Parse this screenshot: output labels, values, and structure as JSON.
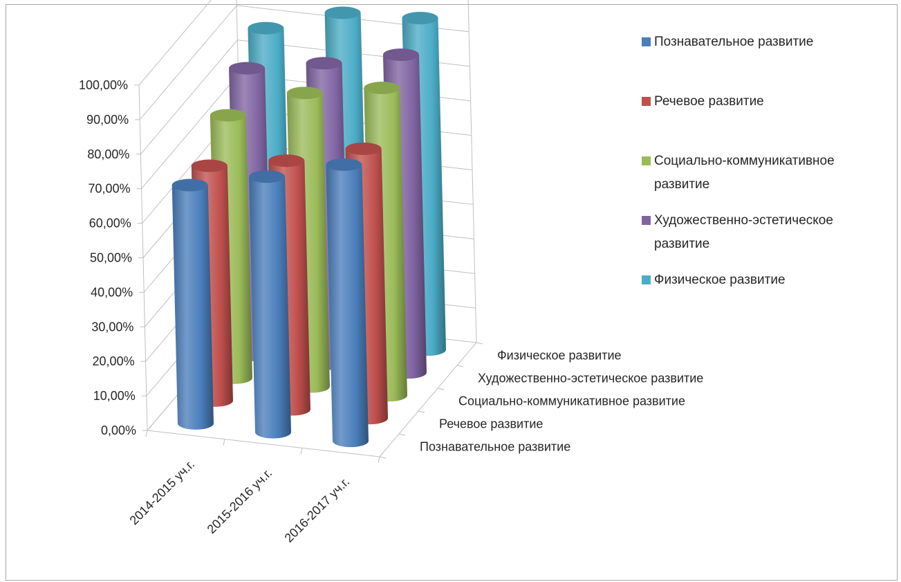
{
  "chart_data": {
    "type": "bar",
    "subtype": "3d-cylinder",
    "categories": [
      "2014-2015 уч.г.",
      "2015-2016 уч.г.",
      "2016-2017 уч.г."
    ],
    "series": [
      {
        "name": "Познавательное развитие",
        "color": "#4a7ebb",
        "values": [
          0.69,
          0.74,
          0.8
        ]
      },
      {
        "name": "Речевое развитие",
        "color": "#c0504d",
        "values": [
          0.68,
          0.72,
          0.78
        ]
      },
      {
        "name": "Социально-коммуникативное развитие",
        "color": "#9bbb59",
        "values": [
          0.76,
          0.85,
          0.89
        ]
      },
      {
        "name": "Художественно-эстетическое развитие",
        "color": "#8064a2",
        "values": [
          0.83,
          0.87,
          0.92
        ]
      },
      {
        "name": "Физическое развитие",
        "color": "#4bacc6",
        "values": [
          0.88,
          0.95,
          0.96
        ]
      }
    ],
    "y_ticks": [
      "0,00%",
      "10,00%",
      "20,00%",
      "30,00%",
      "40,00%",
      "50,00%",
      "60,00%",
      "70,00%",
      "80,00%",
      "90,00%",
      "100,00%"
    ],
    "ylim": [
      0,
      1
    ],
    "depth_labels": [
      "Познавательное развитие",
      "Речевое развитие",
      "Социально-коммуникативное развитие",
      "Художественно-эстетическое развитие",
      "Физическое развитие"
    ],
    "legend": {
      "position": "right",
      "entries": [
        [
          "Познавательное развитие"
        ],
        [
          "Речевое развитие"
        ],
        [
          "Социально-коммуникативное",
          "развитие"
        ],
        [
          "Художественно-эстетическое",
          "развитие"
        ],
        [
          "Физическое развитие"
        ]
      ]
    },
    "grid": true
  }
}
